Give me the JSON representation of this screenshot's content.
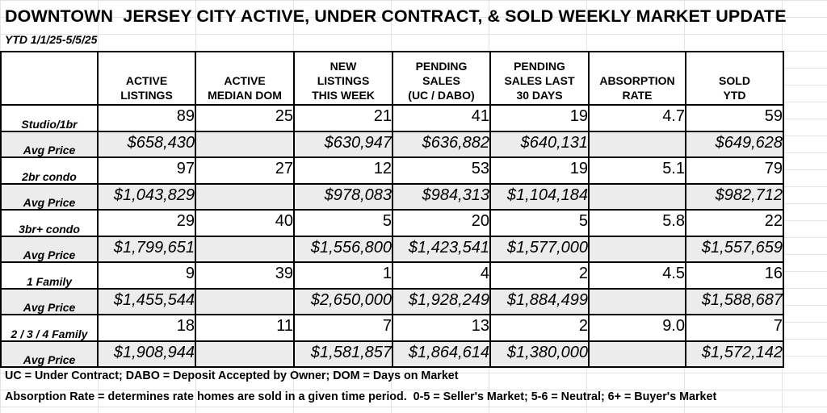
{
  "header": {
    "title": "DOWNTOWN  JERSEY CITY ACTIVE, UNDER CONTRACT, & SOLD WEEKLY MARKET UPDATE",
    "subtitle": "YTD 1/1/25-5/5/25"
  },
  "table": {
    "columns": [
      {
        "lines": [
          "ACTIVE",
          "LISTINGS"
        ]
      },
      {
        "lines": [
          "ACTIVE",
          "MEDIAN DOM"
        ]
      },
      {
        "lines": [
          "NEW",
          "LISTINGS",
          "THIS WEEK"
        ]
      },
      {
        "lines": [
          "PENDING",
          "SALES",
          "(UC / DABO)"
        ]
      },
      {
        "lines": [
          "PENDING",
          "SALES LAST",
          "30 DAYS"
        ]
      },
      {
        "lines": [
          "ABSORPTION",
          "RATE"
        ]
      },
      {
        "lines": [
          "SOLD",
          "YTD"
        ]
      }
    ],
    "rows": [
      {
        "label": "Studio/1br",
        "cells": [
          "89",
          "25",
          "21",
          "41",
          "19",
          "4.7",
          "59"
        ]
      },
      {
        "label": "Avg Price",
        "cells": [
          "$658,430",
          "",
          "$630,947",
          "$636,882",
          "$640,131",
          "",
          "$649,628"
        ]
      },
      {
        "label": "2br condo",
        "cells": [
          "97",
          "27",
          "12",
          "53",
          "19",
          "5.1",
          "79"
        ]
      },
      {
        "label": "Avg Price",
        "cells": [
          "$1,043,829",
          "",
          "$978,083",
          "$984,313",
          "$1,104,184",
          "",
          "$982,712"
        ]
      },
      {
        "label": "3br+ condo",
        "cells": [
          "29",
          "40",
          "5",
          "20",
          "5",
          "5.8",
          "22"
        ]
      },
      {
        "label": "Avg Price",
        "cells": [
          "$1,799,651",
          "",
          "$1,556,800",
          "$1,423,541",
          "$1,577,000",
          "",
          "$1,557,659"
        ]
      },
      {
        "label": "1 Family",
        "cells": [
          "9",
          "39",
          "1",
          "4",
          "2",
          "4.5",
          "16"
        ]
      },
      {
        "label": "Avg Price",
        "cells": [
          "$1,455,544",
          "",
          "$2,650,000",
          "$1,928,249",
          "$1,884,499",
          "",
          "$1,588,687"
        ]
      },
      {
        "label": "2 / 3 / 4 Family",
        "cells": [
          "18",
          "11",
          "7",
          "13",
          "2",
          "9.0",
          "7"
        ]
      },
      {
        "label": "Avg Price",
        "cells": [
          "$1,908,944",
          "",
          "$1,581,857",
          "$1,864,614",
          "$1,380,000",
          "",
          "$1,572,142"
        ]
      }
    ]
  },
  "notes": {
    "legend": "UC = Under Contract; DABO = Deposit Accepted by Owner; DOM = Days on Market",
    "absorption": "Absorption Rate = determines rate homes are sold in a given time period.  0-5 = Seller's Market; 5-6 = Neutral; 6+ = Buyer's Market"
  },
  "colors": {
    "price_row_background": "#ececec",
    "gridline": "#e4e4e4"
  }
}
